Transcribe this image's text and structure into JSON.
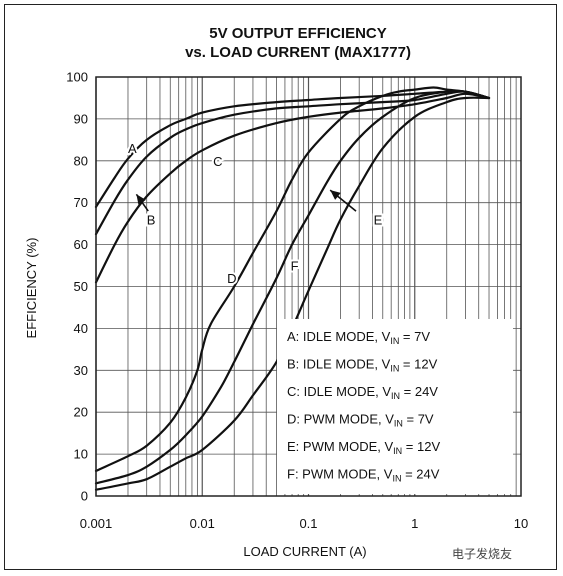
{
  "chart_data": {
    "type": "line",
    "title_lines": [
      "5V OUTPUT EFFICIENCY",
      "vs. LOAD CURRENT (MAX1777)"
    ],
    "xlabel": "LOAD CURRENT (A)",
    "ylabel": "EFFICIENCY (%)",
    "x_scale": "log",
    "xlim": [
      0.001,
      10
    ],
    "ylim": [
      0,
      100
    ],
    "x_ticks": [
      0.001,
      0.01,
      0.1,
      1,
      10
    ],
    "x_tick_labels": [
      "0.001",
      "0.01",
      "0.1",
      "1",
      "10"
    ],
    "y_ticks": [
      0,
      10,
      20,
      30,
      40,
      50,
      60,
      70,
      80,
      90,
      100
    ],
    "y_tick_labels": [
      "0",
      "10",
      "20",
      "30",
      "40",
      "50",
      "60",
      "70",
      "80",
      "90",
      "100"
    ],
    "grid": true,
    "series": [
      {
        "name": "A",
        "x": [
          0.001,
          0.0015,
          0.002,
          0.003,
          0.005,
          0.007,
          0.01,
          0.02,
          0.05,
          0.1,
          0.2,
          0.5,
          1,
          2,
          3,
          5
        ],
        "y": [
          69,
          76,
          80.5,
          85,
          88.5,
          90,
          91.5,
          93,
          94,
          94.5,
          95,
          95.5,
          96,
          96.5,
          96.5,
          95
        ]
      },
      {
        "name": "B",
        "x": [
          0.001,
          0.0015,
          0.002,
          0.003,
          0.005,
          0.007,
          0.01,
          0.02,
          0.05,
          0.1,
          0.2,
          0.5,
          1,
          2,
          3,
          5
        ],
        "y": [
          62.5,
          70.5,
          75.5,
          81,
          85.5,
          87.5,
          89,
          91,
          92.5,
          93,
          93.5,
          94,
          94.5,
          96,
          96.5,
          95
        ]
      },
      {
        "name": "C",
        "x": [
          0.001,
          0.0015,
          0.002,
          0.003,
          0.005,
          0.007,
          0.01,
          0.02,
          0.05,
          0.1,
          0.2,
          0.5,
          1,
          2,
          3,
          5
        ],
        "y": [
          51,
          60,
          65.5,
          71.5,
          77,
          80,
          82.5,
          86,
          89,
          90.5,
          91.5,
          92.5,
          93.5,
          95,
          96,
          95
        ]
      },
      {
        "name": "D",
        "x": [
          0.001,
          0.002,
          0.003,
          0.005,
          0.007,
          0.009,
          0.01,
          0.012,
          0.02,
          0.03,
          0.05,
          0.07,
          0.1,
          0.2,
          0.3,
          0.5,
          0.7,
          1,
          1.5,
          2,
          3,
          5
        ],
        "y": [
          6,
          9.5,
          12,
          17.5,
          23.5,
          30,
          35,
          41,
          50,
          58,
          68,
          75.5,
          82,
          90,
          93,
          95.5,
          96.5,
          97,
          97.5,
          97,
          96.5,
          95
        ]
      },
      {
        "name": "E",
        "x": [
          0.001,
          0.002,
          0.003,
          0.005,
          0.007,
          0.01,
          0.015,
          0.02,
          0.03,
          0.05,
          0.07,
          0.1,
          0.15,
          0.2,
          0.3,
          0.5,
          1,
          2,
          3,
          5
        ],
        "y": [
          3,
          5,
          7,
          11,
          14.5,
          19,
          26,
          32,
          41,
          52,
          60,
          67,
          75,
          80,
          85.5,
          90.5,
          95,
          96.5,
          96.5,
          95
        ]
      },
      {
        "name": "F",
        "x": [
          0.001,
          0.002,
          0.003,
          0.005,
          0.007,
          0.01,
          0.02,
          0.03,
          0.05,
          0.07,
          0.1,
          0.15,
          0.2,
          0.3,
          0.5,
          1,
          2,
          3,
          5
        ],
        "y": [
          1.5,
          3,
          4,
          7,
          9,
          11,
          18,
          24,
          32,
          40,
          49,
          59,
          66,
          74,
          83,
          90.5,
          94,
          95,
          95
        ]
      }
    ],
    "curve_labels": [
      {
        "text": "A",
        "x": 0.0022,
        "y": 83
      },
      {
        "text": "B",
        "x": 0.0033,
        "y": 66
      },
      {
        "text": "C",
        "x": 0.014,
        "y": 80
      },
      {
        "text": "D",
        "x": 0.019,
        "y": 52
      },
      {
        "text": "E",
        "x": 0.45,
        "y": 66
      },
      {
        "text": "F",
        "x": 0.074,
        "y": 55
      }
    ],
    "arrows": [
      {
        "from_x": 0.0031,
        "from_y": 68,
        "to_x": 0.0024,
        "to_y": 72
      },
      {
        "from_x": 0.28,
        "from_y": 68,
        "to_x": 0.16,
        "to_y": 73
      }
    ],
    "legend": {
      "placement": "bottom-right",
      "entries": [
        {
          "prefix": "A: IDLE MODE, V",
          "sub": "IN",
          "suffix": " = 7V"
        },
        {
          "prefix": "B: IDLE MODE, V",
          "sub": "IN",
          "suffix": " = 12V"
        },
        {
          "prefix": "C: IDLE MODE, V",
          "sub": "IN",
          "suffix": " = 24V"
        },
        {
          "prefix": "D: PWM MODE, V",
          "sub": "IN",
          "suffix": " = 7V"
        },
        {
          "prefix": "E: PWM MODE, V",
          "sub": "IN",
          "suffix": " = 12V"
        },
        {
          "prefix": "F: PWM MODE, V",
          "sub": "IN",
          "suffix": " = 24V"
        }
      ]
    }
  },
  "watermark": "电子发烧友"
}
